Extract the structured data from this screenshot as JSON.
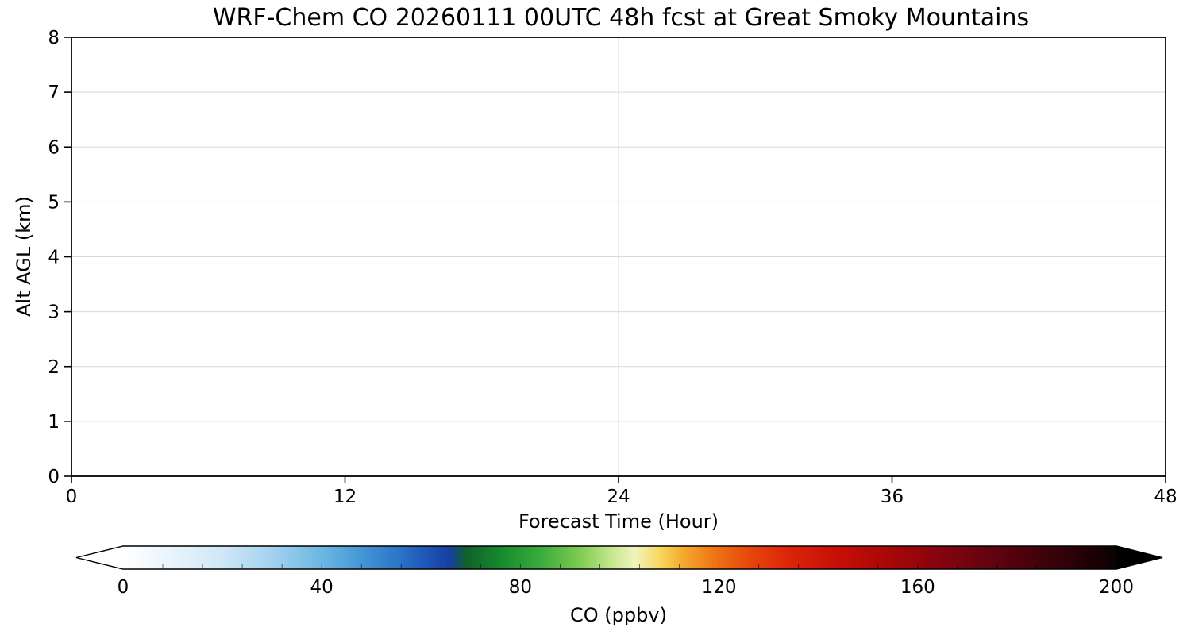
{
  "chart_data": {
    "type": "heatmap",
    "title": "WRF-Chem CO  20260111 00UTC 48h fcst at Great Smoky Mountains",
    "xlabel": "Forecast Time (Hour)",
    "ylabel": "Alt AGL (km)",
    "xlim": [
      0,
      48
    ],
    "ylim": [
      0,
      8
    ],
    "x_ticks": [
      0,
      12,
      24,
      36,
      48
    ],
    "y_ticks": [
      0,
      1,
      2,
      3,
      4,
      5,
      6,
      7,
      8
    ],
    "grid": true,
    "grid_color": "#d9d9d9",
    "data_note": "plot area is empty/white: no CO values visible above the white low end of the colormap",
    "series": [],
    "colorbar": {
      "label": "CO  (ppbv)",
      "ticks": [
        0,
        40,
        80,
        120,
        160,
        200
      ],
      "range": [
        0,
        200
      ],
      "extend": "both",
      "under_color": "#ffffff",
      "over_color": "#000000",
      "level_step": 8,
      "stops": [
        {
          "v": 0,
          "c": "#ffffff"
        },
        {
          "v": 10,
          "c": "#e8f3fb"
        },
        {
          "v": 20,
          "c": "#cfe7f7"
        },
        {
          "v": 30,
          "c": "#a3d2ef"
        },
        {
          "v": 40,
          "c": "#6cb6e2"
        },
        {
          "v": 48,
          "c": "#4497d6"
        },
        {
          "v": 56,
          "c": "#2a72c6"
        },
        {
          "v": 62,
          "c": "#1d51b2"
        },
        {
          "v": 66,
          "c": "#163f9f"
        },
        {
          "v": 69,
          "c": "#10602a"
        },
        {
          "v": 76,
          "c": "#178a2e"
        },
        {
          "v": 84,
          "c": "#3aab3c"
        },
        {
          "v": 92,
          "c": "#7fcb52"
        },
        {
          "v": 98,
          "c": "#c2e58a"
        },
        {
          "v": 103,
          "c": "#f0f4be"
        },
        {
          "v": 108,
          "c": "#f7d860"
        },
        {
          "v": 113,
          "c": "#f4a82c"
        },
        {
          "v": 119,
          "c": "#ee7514"
        },
        {
          "v": 126,
          "c": "#e6480c"
        },
        {
          "v": 134,
          "c": "#dc2408"
        },
        {
          "v": 144,
          "c": "#c70f07"
        },
        {
          "v": 154,
          "c": "#a90707"
        },
        {
          "v": 164,
          "c": "#88040e"
        },
        {
          "v": 174,
          "c": "#650310"
        },
        {
          "v": 184,
          "c": "#44020b"
        },
        {
          "v": 193,
          "c": "#250106"
        },
        {
          "v": 200,
          "c": "#0a0102"
        }
      ]
    }
  }
}
